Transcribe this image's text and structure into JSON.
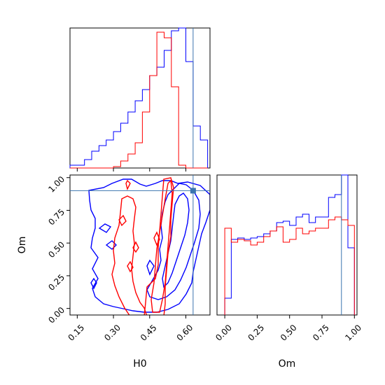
{
  "colors": {
    "series_a": "#0000ff",
    "series_b": "#ff0000",
    "truth": "#3b75af",
    "axis": "#000000",
    "background": "#ffffff"
  },
  "chart_data": {
    "type": "corner",
    "parameters": [
      "H0",
      "Om"
    ],
    "truth": {
      "H0": 0.63,
      "Om": 0.9
    },
    "panels": [
      {
        "id": "h0_hist",
        "type": "histogram",
        "parameter": "H0",
        "xlim": [
          0.12,
          0.7
        ],
        "ylim": [
          0,
          1.0
        ],
        "bin_edges": [
          0.12,
          0.15,
          0.18,
          0.21,
          0.24,
          0.27,
          0.3,
          0.33,
          0.36,
          0.39,
          0.42,
          0.45,
          0.48,
          0.51,
          0.54,
          0.57,
          0.6,
          0.63,
          0.66,
          0.69
        ],
        "series": [
          {
            "color": "#0000ff",
            "values": [
              0.02,
              0.02,
              0.06,
              0.12,
              0.16,
              0.2,
              0.26,
              0.32,
              0.4,
              0.48,
              0.56,
              0.66,
              0.72,
              0.84,
              0.98,
              1.0,
              0.76,
              0.3,
              0.2
            ]
          },
          {
            "color": "#ff0000",
            "values": [
              0,
              0,
              0,
              0,
              0,
              0,
              0.01,
              0.05,
              0.1,
              0.18,
              0.4,
              0.66,
              0.97,
              0.93,
              0.58,
              0.02,
              0,
              0,
              0
            ]
          }
        ]
      },
      {
        "id": "joint_contour",
        "type": "contour",
        "x": "H0",
        "y": "Om",
        "xlim": [
          0.12,
          0.7
        ],
        "ylim": [
          -0.05,
          1.02
        ],
        "xticks": [
          "0.15",
          "0.30",
          "0.45",
          "0.60"
        ],
        "yticks": [
          "0.00",
          "0.25",
          "0.50",
          "0.75",
          "1.00"
        ]
      },
      {
        "id": "om_hist",
        "type": "histogram",
        "parameter": "Om",
        "xlim": [
          -0.06,
          1.02
        ],
        "ylim": [
          0,
          1.0
        ],
        "xticks": [
          "0.00",
          "0.25",
          "0.50",
          "0.75",
          "1.00"
        ],
        "bin_edges": [
          0.0,
          0.05,
          0.1,
          0.15,
          0.2,
          0.25,
          0.3,
          0.35,
          0.4,
          0.45,
          0.5,
          0.55,
          0.6,
          0.65,
          0.7,
          0.75,
          0.8,
          0.85,
          0.9,
          0.95,
          1.0
        ],
        "series": [
          {
            "color": "#0000ff",
            "values": [
              0.12,
              0.54,
              0.55,
              0.54,
              0.55,
              0.56,
              0.58,
              0.6,
              0.66,
              0.67,
              0.64,
              0.7,
              0.72,
              0.66,
              0.7,
              0.7,
              0.84,
              0.86,
              1.0,
              0.48
            ]
          },
          {
            "color": "#ff0000",
            "values": [
              0.62,
              0.52,
              0.54,
              0.53,
              0.5,
              0.52,
              0.56,
              0.6,
              0.63,
              0.52,
              0.54,
              0.62,
              0.58,
              0.6,
              0.62,
              0.62,
              0.68,
              0.7,
              0.68,
              0.64
            ]
          }
        ]
      }
    ],
    "xlabels": {
      "joint": "H0",
      "om_hist": "Om"
    },
    "ylabels": {
      "joint": "Om"
    }
  }
}
